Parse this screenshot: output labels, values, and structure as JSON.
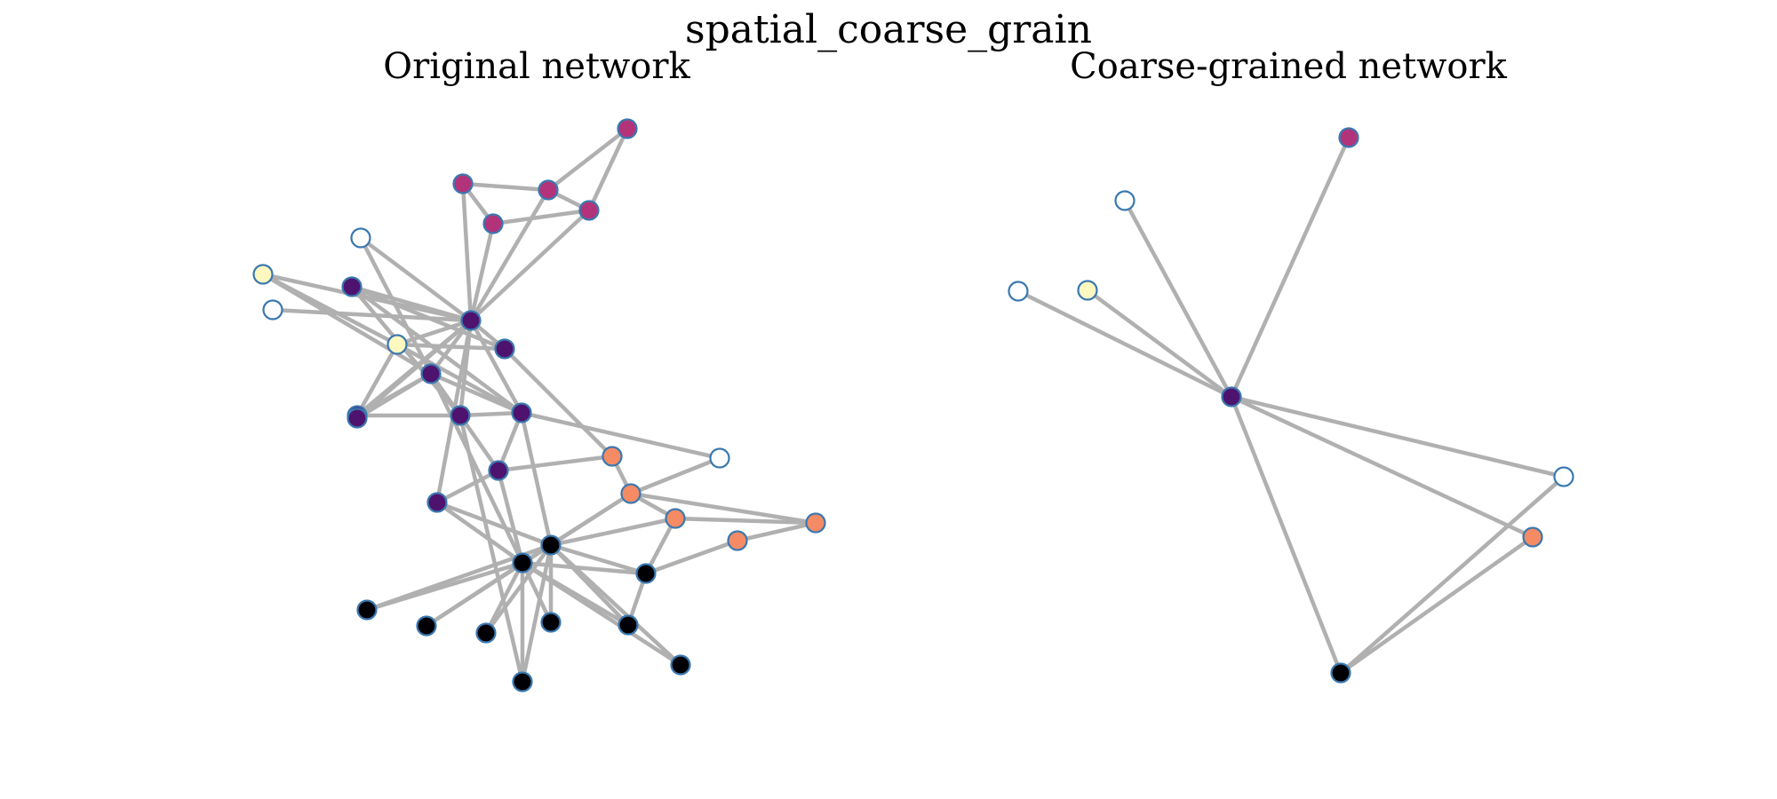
{
  "figure": {
    "title": "spatial_coarse_grain",
    "panels": [
      {
        "title": "Original network"
      },
      {
        "title": "Coarse-grained network"
      }
    ]
  },
  "colors": {
    "edge": "#b0b0b0",
    "node_stroke": "#3a78b0",
    "communities": {
      "magenta": "#b3337a",
      "purple": "#4e136e",
      "cream": "#fcf8c0",
      "white": "#ffffff",
      "orange": "#f58b64",
      "black": "#000004"
    }
  }
}
